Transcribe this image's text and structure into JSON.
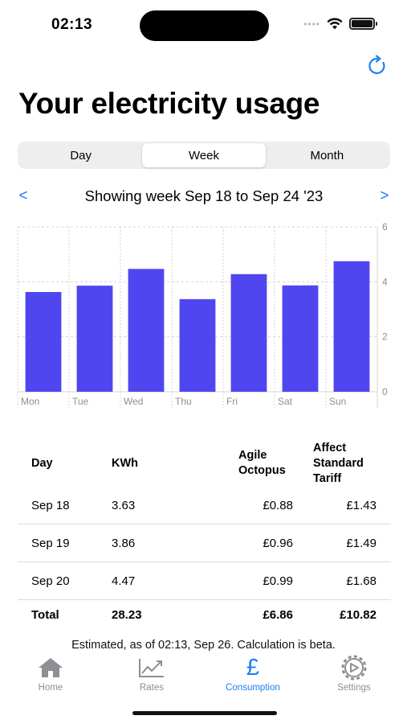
{
  "status_bar": {
    "time": "02:13"
  },
  "header": {
    "title": "Your electricity usage"
  },
  "segmented": {
    "options": [
      "Day",
      "Week",
      "Month"
    ],
    "selected": "Week"
  },
  "week_nav": {
    "prev": "<",
    "label": "Showing week Sep 18 to Sep 24 '23",
    "next": ">"
  },
  "chart_data": {
    "type": "bar",
    "categories": [
      "Mon",
      "Tue",
      "Wed",
      "Thu",
      "Fri",
      "Sat",
      "Sun"
    ],
    "values": [
      3.63,
      3.86,
      4.47,
      3.37,
      4.28,
      3.87,
      4.75
    ],
    "ylim": [
      0,
      6
    ],
    "yticks": [
      0,
      2,
      4,
      6
    ],
    "color": "#5046ef",
    "grid": true,
    "title": "",
    "xlabel": "",
    "ylabel": ""
  },
  "table": {
    "headers": {
      "day": "Day",
      "kwh": "KWh",
      "agile": [
        "Agile",
        "Octopus"
      ],
      "standard": [
        "Affect",
        "Standard",
        "Tariff"
      ]
    },
    "rows": [
      {
        "day": "Sep 18",
        "kwh": "3.63",
        "agile": "£0.88",
        "standard": "£1.43"
      },
      {
        "day": "Sep 19",
        "kwh": "3.86",
        "agile": "£0.96",
        "standard": "£1.49"
      },
      {
        "day": "Sep 20",
        "kwh": "4.47",
        "agile": "£0.99",
        "standard": "£1.68"
      }
    ],
    "total": {
      "day": "Total",
      "kwh": "28.23",
      "agile": "£6.86",
      "standard": "£10.82"
    }
  },
  "footnote": "Estimated, as of 02:13, Sep 26. Calculation is beta.",
  "tabbar": {
    "items": [
      {
        "label": "Home",
        "icon": "house-icon"
      },
      {
        "label": "Rates",
        "icon": "chart-line-icon"
      },
      {
        "label": "Consumption",
        "icon": "pound-icon"
      },
      {
        "label": "Settings",
        "icon": "gear-icon"
      }
    ],
    "active": "Consumption"
  },
  "colors": {
    "accent": "#1a7ff0",
    "bar": "#5046ef"
  }
}
